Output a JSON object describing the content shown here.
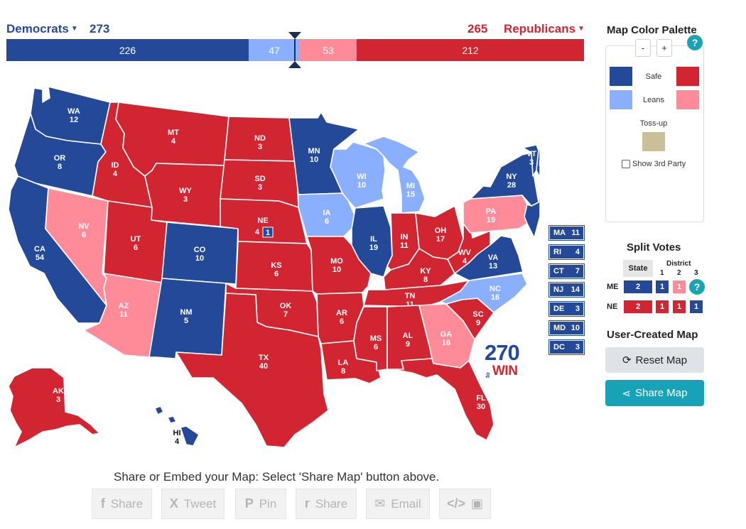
{
  "header": {
    "dem_label": "Democrats",
    "dem_total": "273",
    "rep_total": "265",
    "rep_label": "Republicans",
    "bar": {
      "safe_dem": "226",
      "lean_dem": "47",
      "lean_rep": "53",
      "safe_rep": "212"
    }
  },
  "colors": {
    "safe_dem": "#244999",
    "lean_dem": "#8aafff",
    "lean_rep": "#ff8b98",
    "safe_rep": "#d22532",
    "tossup": "#c9bf98"
  },
  "states": {
    "WA": {
      "abbr": "WA",
      "ev": "12"
    },
    "OR": {
      "abbr": "OR",
      "ev": "8"
    },
    "CA": {
      "abbr": "CA",
      "ev": "54"
    },
    "NV": {
      "abbr": "NV",
      "ev": "6"
    },
    "ID": {
      "abbr": "ID",
      "ev": "4"
    },
    "MT": {
      "abbr": "MT",
      "ev": "4"
    },
    "WY": {
      "abbr": "WY",
      "ev": "3"
    },
    "UT": {
      "abbr": "UT",
      "ev": "6"
    },
    "AZ": {
      "abbr": "AZ",
      "ev": "11"
    },
    "CO": {
      "abbr": "CO",
      "ev": "10"
    },
    "NM": {
      "abbr": "NM",
      "ev": "5"
    },
    "ND": {
      "abbr": "ND",
      "ev": "3"
    },
    "SD": {
      "abbr": "SD",
      "ev": "3"
    },
    "NE": {
      "abbr": "NE",
      "ev": "4",
      "district": "1"
    },
    "KS": {
      "abbr": "KS",
      "ev": "6"
    },
    "OK": {
      "abbr": "OK",
      "ev": "7"
    },
    "TX": {
      "abbr": "TX",
      "ev": "40"
    },
    "MN": {
      "abbr": "MN",
      "ev": "10"
    },
    "IA": {
      "abbr": "IA",
      "ev": "6"
    },
    "MO": {
      "abbr": "MO",
      "ev": "10"
    },
    "AR": {
      "abbr": "AR",
      "ev": "6"
    },
    "LA": {
      "abbr": "LA",
      "ev": "8"
    },
    "WI": {
      "abbr": "WI",
      "ev": "10"
    },
    "IL": {
      "abbr": "IL",
      "ev": "19"
    },
    "MI": {
      "abbr": "MI",
      "ev": "15"
    },
    "IN": {
      "abbr": "IN",
      "ev": "11"
    },
    "OH": {
      "abbr": "OH",
      "ev": "17"
    },
    "KY": {
      "abbr": "KY",
      "ev": "8"
    },
    "TN": {
      "abbr": "TN",
      "ev": "11"
    },
    "MS": {
      "abbr": "MS",
      "ev": "6"
    },
    "AL": {
      "abbr": "AL",
      "ev": "9"
    },
    "GA": {
      "abbr": "GA",
      "ev": "16"
    },
    "FL": {
      "abbr": "FL",
      "ev": "30"
    },
    "SC": {
      "abbr": "SC",
      "ev": "9"
    },
    "NC": {
      "abbr": "NC",
      "ev": "16"
    },
    "VA": {
      "abbr": "VA",
      "ev": "13"
    },
    "WV": {
      "abbr": "WV",
      "ev": "4"
    },
    "PA": {
      "abbr": "PA",
      "ev": "19"
    },
    "NY": {
      "abbr": "NY",
      "ev": "28"
    },
    "VT": {
      "abbr": "VT",
      "ev": "3"
    },
    "NH": {
      "abbr": "NH",
      "ev": "4"
    },
    "ME": {
      "abbr": "ME",
      "ev": "3",
      "district": "1"
    },
    "AK": {
      "abbr": "AK",
      "ev": "3"
    },
    "HI": {
      "abbr": "HI",
      "ev": "4"
    }
  },
  "small_states": [
    {
      "abbr": "MA",
      "ev": "11"
    },
    {
      "abbr": "RI",
      "ev": "4"
    },
    {
      "abbr": "CT",
      "ev": "7"
    },
    {
      "abbr": "NJ",
      "ev": "14"
    },
    {
      "abbr": "DE",
      "ev": "3"
    },
    {
      "abbr": "MD",
      "ev": "10"
    },
    {
      "abbr": "DC",
      "ev": "3"
    }
  ],
  "logo": {
    "number": "270",
    "to": "to",
    "win": "WIN"
  },
  "palette": {
    "title": "Map Color Palette",
    "minus": "-",
    "plus": "+",
    "help": "?",
    "safe_label": "Safe",
    "leans_label": "Leans",
    "tossup_label": "Toss-up",
    "third_party_label": "Show 3rd Party"
  },
  "split_votes": {
    "title": "Split Votes",
    "state_header": "State",
    "district_header": "District",
    "district_numbers": [
      "1",
      "2",
      "3"
    ],
    "me": {
      "label": "ME",
      "state": "2",
      "d1": "1",
      "d2": "1",
      "help": "?"
    },
    "ne": {
      "label": "NE",
      "state": "2",
      "d1": "1",
      "d2": "1",
      "d3": "1"
    }
  },
  "user_map": {
    "title": "User-Created Map",
    "reset_label": "Reset Map",
    "share_label": "Share Map"
  },
  "footer": {
    "embed_text": "Share or Embed your Map: Select 'Share Map' button above.",
    "buttons": [
      {
        "icon": "f",
        "label": "Share"
      },
      {
        "icon": "X",
        "label": "Tweet"
      },
      {
        "icon": "P",
        "label": "Pin"
      },
      {
        "icon": "r",
        "label": "Share"
      },
      {
        "icon": "✉",
        "label": "Email"
      },
      {
        "icon": "</>",
        "label": ""
      }
    ]
  }
}
